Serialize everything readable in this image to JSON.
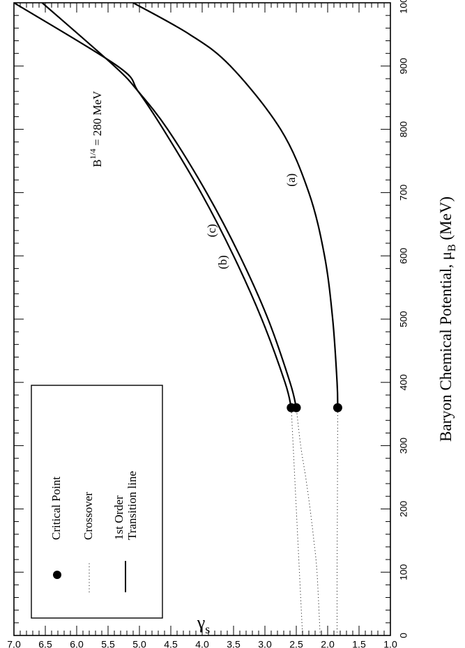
{
  "chart_data": {
    "type": "line",
    "orientation": "rotated-90-ccw",
    "title": "",
    "xlabel": "Baryon Chemical Potential, μ",
    "xlabel_subscript": "B",
    "xlabel_unit": "(MeV)",
    "ylabel": "γ",
    "ylabel_subscript": "s",
    "xlim": [
      0,
      1000
    ],
    "ylim": [
      1.0,
      7.0
    ],
    "x_ticks": [
      "0",
      "100",
      "200",
      "300",
      "400",
      "500",
      "600",
      "700",
      "800",
      "900",
      "1000"
    ],
    "y_ticks": [
      "1.0",
      "1.5",
      "2.0",
      "2.5",
      "3.0",
      "3.5",
      "4.0",
      "4.5",
      "5.0",
      "5.5",
      "6.0",
      "6.5",
      "7.0"
    ],
    "annotation": {
      "base": "B",
      "superscript": "1/4",
      "rest": " = 280 MeV"
    },
    "legend": {
      "position": "bottom-left",
      "items": [
        {
          "label": "Critical Point",
          "marker": "filled-circle"
        },
        {
          "label": "Crossover",
          "marker": "dotted-line"
        },
        {
          "label": "1st Order",
          "label2": "Transition line",
          "marker": "solid-line"
        }
      ]
    },
    "series": [
      {
        "name": "(a)",
        "critical_point": {
          "x": 360,
          "y": 1.84
        },
        "crossover": {
          "x": [
            0,
            100,
            200,
            300,
            360
          ],
          "y": [
            1.85,
            1.85,
            1.845,
            1.842,
            1.84
          ]
        },
        "first_order": {
          "x": [
            360,
            400,
            500,
            600,
            700,
            800,
            900,
            950,
            1000
          ],
          "y": [
            1.84,
            1.85,
            1.92,
            2.05,
            2.3,
            2.75,
            3.55,
            4.2,
            5.1
          ]
        }
      },
      {
        "name": "(b)",
        "critical_point": {
          "x": 360,
          "y": 2.58
        },
        "crossover": {
          "x": [
            0,
            100,
            200,
            300,
            360
          ],
          "y": [
            2.4,
            2.45,
            2.5,
            2.55,
            2.58
          ]
        },
        "first_order": {
          "x": [
            360,
            400,
            500,
            600,
            700,
            800,
            860,
            900,
            1000
          ],
          "y": [
            2.58,
            2.68,
            3.05,
            3.5,
            4.02,
            4.62,
            5.02,
            5.35,
            7.0
          ]
        }
      },
      {
        "name": "(c)",
        "critical_point": {
          "x": 360,
          "y": 2.5
        },
        "crossover": {
          "x": [
            0,
            100,
            150,
            200,
            250,
            300,
            360
          ],
          "y": [
            2.12,
            2.17,
            2.22,
            2.28,
            2.35,
            2.43,
            2.5
          ]
        },
        "first_order": {
          "x": [
            360,
            400,
            500,
            600,
            700,
            800,
            860,
            900,
            1000
          ],
          "y": [
            2.5,
            2.6,
            2.95,
            3.4,
            3.93,
            4.55,
            5.02,
            5.4,
            6.55
          ]
        }
      }
    ]
  }
}
